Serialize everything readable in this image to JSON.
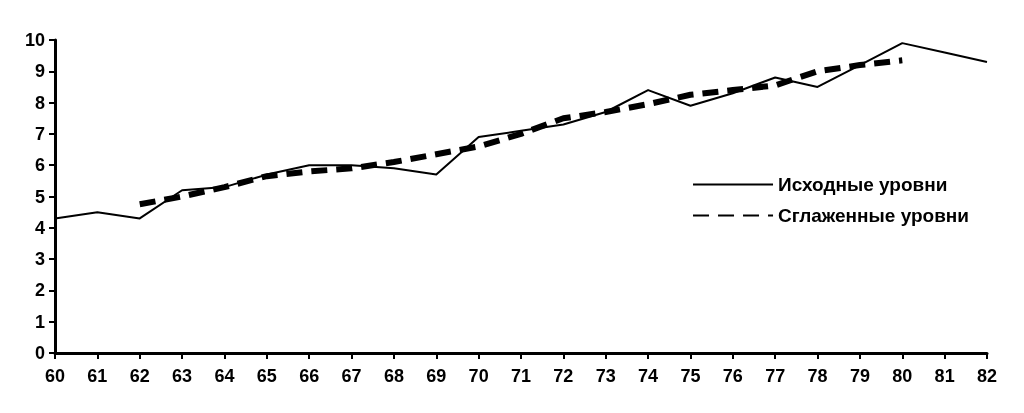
{
  "chart_data": {
    "type": "line",
    "x": [
      60,
      61,
      62,
      63,
      64,
      65,
      66,
      67,
      68,
      69,
      70,
      71,
      72,
      73,
      74,
      75,
      76,
      77,
      78,
      79,
      80,
      81,
      82
    ],
    "series": [
      {
        "name": "Исходные уровни",
        "color": "#000000",
        "line_style": "solid",
        "values": [
          4.3,
          4.5,
          4.3,
          5.2,
          5.3,
          5.7,
          6.0,
          6.0,
          5.9,
          5.7,
          6.9,
          7.1,
          7.3,
          7.7,
          8.4,
          7.9,
          8.3,
          8.8,
          8.5,
          9.2,
          9.9,
          9.6,
          9.3
        ]
      },
      {
        "name": "Сглаженные уровни",
        "color": "#000000",
        "line_style": "dashed",
        "x": [
          62,
          63,
          64,
          65,
          66,
          67,
          68,
          69,
          70,
          71,
          72,
          73,
          74,
          75,
          76,
          77,
          78,
          79,
          80
        ],
        "values": [
          4.75,
          5.0,
          5.3,
          5.65,
          5.8,
          5.9,
          6.1,
          6.35,
          6.6,
          7.0,
          7.5,
          7.7,
          7.95,
          8.25,
          8.4,
          8.55,
          9.0,
          9.2,
          9.35
        ]
      }
    ],
    "xlim": [
      60,
      82
    ],
    "xticks": [
      60,
      61,
      62,
      63,
      64,
      65,
      66,
      67,
      68,
      69,
      70,
      71,
      72,
      73,
      74,
      75,
      76,
      77,
      78,
      79,
      80,
      81,
      82
    ],
    "ylim": [
      0,
      10
    ],
    "yticks": [
      0,
      1,
      2,
      3,
      4,
      5,
      6,
      7,
      8,
      9,
      10
    ],
    "grid": false,
    "legend": "right",
    "marker": "none"
  }
}
